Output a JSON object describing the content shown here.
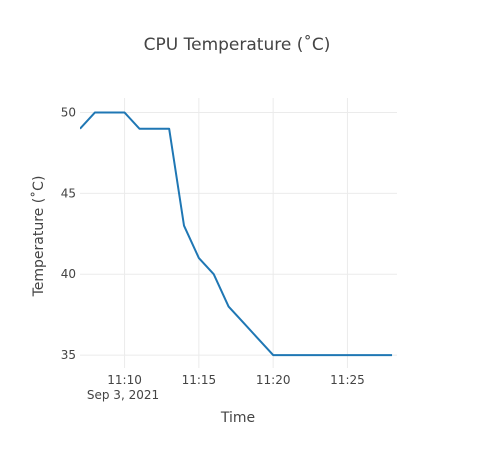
{
  "chart_data": {
    "type": "line",
    "title": "CPU Temperature (˚C)",
    "xlabel": "Time",
    "ylabel": "Temperature (˚C)",
    "x_type": "time",
    "x_date_label": "Sep 3, 2021",
    "xlim": [
      "2021-09-03 11:07:00",
      "2021-09-03 11:28:20"
    ],
    "ylim": [
      34.2,
      50.9
    ],
    "x_ticks": [
      "11:10",
      "11:15",
      "11:20",
      "11:25"
    ],
    "y_ticks": [
      35,
      40,
      45,
      50
    ],
    "grid": true,
    "series": [
      {
        "color": "#1f77b4",
        "x": [
          "2021-09-03 11:07:00",
          "2021-09-03 11:08:00",
          "2021-09-03 11:09:00",
          "2021-09-03 11:10:00",
          "2021-09-03 11:11:00",
          "2021-09-03 11:12:00",
          "2021-09-03 11:13:00",
          "2021-09-03 11:14:00",
          "2021-09-03 11:15:00",
          "2021-09-03 11:16:00",
          "2021-09-03 11:17:00",
          "2021-09-03 11:18:00",
          "2021-09-03 11:19:00",
          "2021-09-03 11:20:00",
          "2021-09-03 11:21:00",
          "2021-09-03 11:22:00",
          "2021-09-03 11:23:00",
          "2021-09-03 11:24:00",
          "2021-09-03 11:25:00",
          "2021-09-03 11:26:00",
          "2021-09-03 11:27:00",
          "2021-09-03 11:28:00"
        ],
        "y": [
          49,
          50,
          50,
          50,
          49,
          49,
          49,
          43,
          41,
          40,
          38,
          37,
          36,
          35,
          35,
          35,
          35,
          35,
          35,
          35,
          35,
          35
        ]
      }
    ]
  }
}
